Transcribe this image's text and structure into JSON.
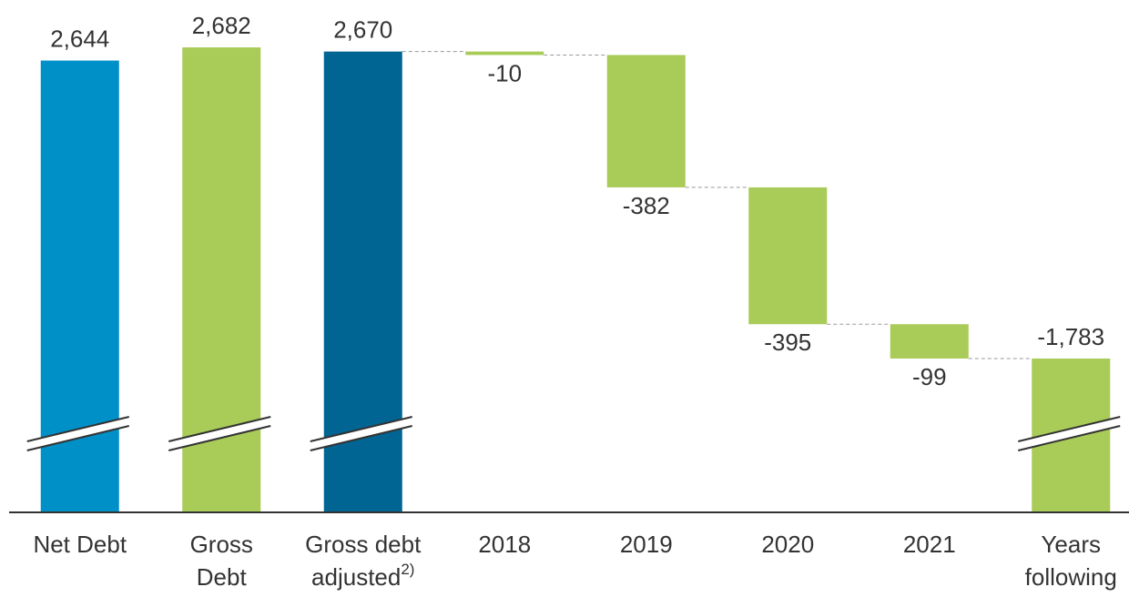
{
  "chart_data": {
    "type": "waterfall",
    "categories": [
      [
        "Net Debt"
      ],
      [
        "Gross",
        "Debt"
      ],
      [
        "Gross debt",
        "adjusted"
      ],
      [
        "2018"
      ],
      [
        "2019"
      ],
      [
        "2020"
      ],
      [
        "2021"
      ],
      [
        "Years",
        "following"
      ]
    ],
    "categories_superscript": [
      null,
      null,
      "2)",
      null,
      null,
      null,
      null,
      null
    ],
    "values": [
      2644,
      2682,
      2670,
      -10,
      -382,
      -395,
      -99,
      -1783
    ],
    "value_labels": [
      "2,644",
      "2,682",
      "2,670",
      "-10",
      "-382",
      "-395",
      "-99",
      "-1,783"
    ],
    "measures": [
      "absolute",
      "absolute",
      "absolute",
      "relative",
      "relative",
      "relative",
      "relative",
      "relative"
    ],
    "colors": [
      "#0090c8",
      "#a9cb58",
      "#006592",
      "#a9cb58",
      "#a9cb58",
      "#a9cb58",
      "#a9cb58",
      "#a9cb58"
    ],
    "ylim": [
      1340,
      2740
    ],
    "broken_axis": true
  }
}
